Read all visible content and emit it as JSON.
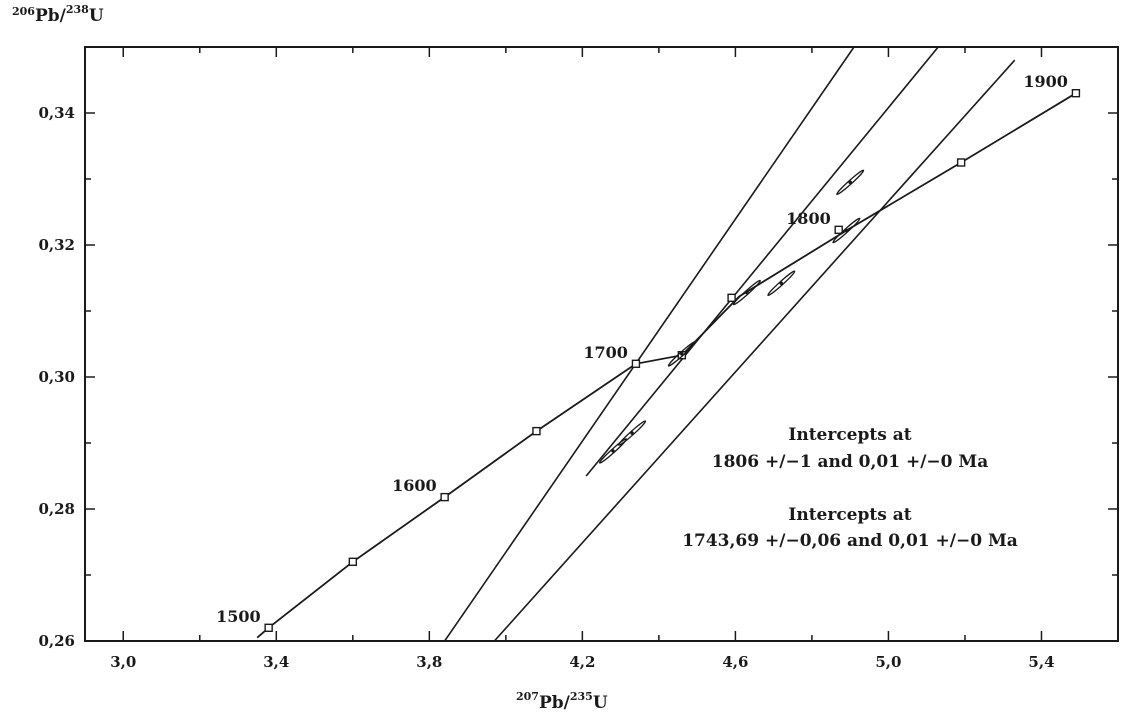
{
  "chart_data": {
    "type": "line",
    "xlabel": {
      "sup1": "207",
      "main1": "Pb/",
      "sup2": "235",
      "main2": "U"
    },
    "ylabel": {
      "sup1": "206",
      "main1": "Pb/",
      "sup2": "238",
      "main2": "U"
    },
    "xlim": [
      2.9,
      5.6
    ],
    "ylim": [
      0.26,
      0.35
    ],
    "x_ticks": [
      3.0,
      3.4,
      3.8,
      4.2,
      4.6,
      5.0,
      5.4
    ],
    "x_tick_labels": [
      "3,0",
      "3,4",
      "3,8",
      "4,2",
      "4,6",
      "5,0",
      "5,4"
    ],
    "y_ticks": [
      0.26,
      0.28,
      0.3,
      0.32,
      0.34
    ],
    "y_tick_labels": [
      "0,26",
      "0,28",
      "0,30",
      "0,32",
      "0,34"
    ],
    "grid": false,
    "concordia": {
      "points": [
        {
          "x": 3.35,
          "y": 0.2605
        },
        {
          "x": 3.38,
          "y": 0.262
        },
        {
          "x": 3.6,
          "y": 0.272
        },
        {
          "x": 3.84,
          "y": 0.2818
        },
        {
          "x": 4.08,
          "y": 0.2918
        },
        {
          "x": 4.34,
          "y": 0.302
        },
        {
          "x": 4.46,
          "y": 0.3033
        },
        {
          "x": 4.61,
          "y": 0.3122
        },
        {
          "x": 4.89,
          "y": 0.3222
        },
        {
          "x": 5.19,
          "y": 0.3325
        },
        {
          "x": 5.49,
          "y": 0.343
        }
      ],
      "markers": [
        {
          "x": 3.38,
          "y": 0.262
        },
        {
          "x": 3.6,
          "y": 0.272
        },
        {
          "x": 3.84,
          "y": 0.2818
        },
        {
          "x": 4.08,
          "y": 0.2918
        },
        {
          "x": 4.34,
          "y": 0.302
        },
        {
          "x": 4.46,
          "y": 0.3033
        },
        {
          "x": 4.59,
          "y": 0.312
        },
        {
          "x": 4.87,
          "y": 0.3223
        },
        {
          "x": 5.19,
          "y": 0.3325
        },
        {
          "x": 5.49,
          "y": 0.343
        }
      ],
      "age_labels": [
        {
          "text": "1500",
          "x": 3.38,
          "y": 0.262
        },
        {
          "text": "1600",
          "x": 3.84,
          "y": 0.2818
        },
        {
          "text": "1700",
          "x": 4.34,
          "y": 0.302
        },
        {
          "text": "1800",
          "x": 4.87,
          "y": 0.3223
        },
        {
          "text": "1900",
          "x": 5.49,
          "y": 0.343
        }
      ]
    },
    "discordia_lines": [
      {
        "name": "",
        "x": [
          3.84,
          4.91
        ],
        "y": [
          0.26,
          0.35
        ]
      },
      {
        "name": "",
        "x": [
          3.97,
          5.33
        ],
        "y": [
          0.26,
          0.348
        ]
      },
      {
        "name": "",
        "x": [
          4.21,
          5.13
        ],
        "y": [
          0.285,
          0.35
        ]
      }
    ],
    "data_points": [
      {
        "x": 4.28,
        "y": 0.2888
      },
      {
        "x": 4.33,
        "y": 0.2915
      },
      {
        "x": 4.46,
        "y": 0.3035
      },
      {
        "x": 4.63,
        "y": 0.3128
      },
      {
        "x": 4.72,
        "y": 0.3142
      },
      {
        "x": 4.89,
        "y": 0.3222
      },
      {
        "x": 4.9,
        "y": 0.3295
      }
    ],
    "annotations": [
      {
        "line1": "Intercepts at",
        "line2": "1806 +/−1 and 0,01 +/−0 Ma"
      },
      {
        "line1": "Intercepts at",
        "line2": "1743,69 +/−0,06 and 0,01 +/−0 Ma"
      }
    ],
    "colors": {
      "line": "#1a1a1a",
      "background": "#ffffff"
    }
  }
}
